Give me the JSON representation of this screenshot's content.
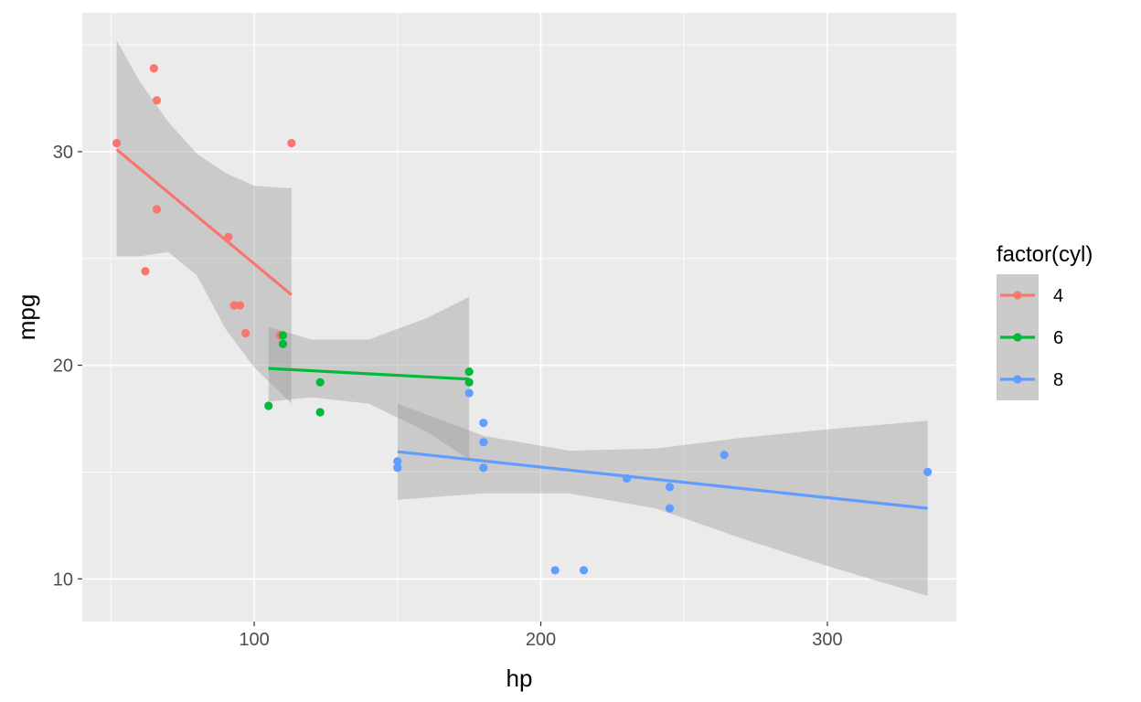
{
  "chart_data": {
    "type": "scatter",
    "xlabel": "hp",
    "ylabel": "mpg",
    "xlim": [
      40,
      345
    ],
    "ylim": [
      8,
      36.5
    ],
    "x_ticks": [
      100,
      200,
      300
    ],
    "y_ticks": [
      10,
      20,
      30
    ],
    "x_tick_labels": [
      "100",
      "200",
      "300"
    ],
    "y_tick_labels": [
      "10",
      "20",
      "30"
    ],
    "grid": true,
    "legend": {
      "title": "factor(cyl)",
      "placement": "right",
      "entries": [
        "4",
        "6",
        "8"
      ]
    },
    "series": [
      {
        "name": "4",
        "color": "#F8766D",
        "points": [
          {
            "x": 52,
            "y": 30.4
          },
          {
            "x": 62,
            "y": 24.4
          },
          {
            "x": 65,
            "y": 33.9
          },
          {
            "x": 66,
            "y": 32.4
          },
          {
            "x": 66,
            "y": 27.3
          },
          {
            "x": 91,
            "y": 26.0
          },
          {
            "x": 93,
            "y": 22.8
          },
          {
            "x": 95,
            "y": 22.8
          },
          {
            "x": 97,
            "y": 21.5
          },
          {
            "x": 109,
            "y": 21.4
          },
          {
            "x": 113,
            "y": 30.4
          }
        ],
        "fit": {
          "x": [
            52,
            113
          ],
          "y": [
            30.1,
            23.3
          ]
        },
        "ribbon": {
          "x": [
            52,
            60,
            70,
            80,
            90,
            100,
            110,
            113
          ],
          "upper": [
            35.2,
            33.3,
            31.4,
            29.9,
            29.0,
            28.4,
            28.3,
            28.3
          ],
          "lower": [
            25.1,
            25.1,
            25.3,
            24.2,
            21.7,
            19.9,
            18.6,
            18.2
          ]
        }
      },
      {
        "name": "6",
        "color": "#00BA38",
        "points": [
          {
            "x": 105,
            "y": 18.1
          },
          {
            "x": 110,
            "y": 21.0
          },
          {
            "x": 110,
            "y": 21.4
          },
          {
            "x": 123,
            "y": 19.2
          },
          {
            "x": 123,
            "y": 17.8
          },
          {
            "x": 175,
            "y": 19.7
          },
          {
            "x": 175,
            "y": 19.2
          }
        ],
        "fit": {
          "x": [
            105,
            175
          ],
          "y": [
            19.85,
            19.35
          ]
        },
        "ribbon": {
          "x": [
            105,
            120,
            140,
            160,
            175
          ],
          "upper": [
            21.8,
            21.2,
            21.2,
            22.2,
            23.2
          ],
          "lower": [
            18.3,
            18.5,
            18.2,
            16.9,
            15.6
          ]
        }
      },
      {
        "name": "8",
        "color": "#619CFF",
        "points": [
          {
            "x": 150,
            "y": 15.5
          },
          {
            "x": 150,
            "y": 15.2
          },
          {
            "x": 175,
            "y": 18.7
          },
          {
            "x": 180,
            "y": 17.3
          },
          {
            "x": 180,
            "y": 16.4
          },
          {
            "x": 180,
            "y": 15.2
          },
          {
            "x": 205,
            "y": 10.4
          },
          {
            "x": 215,
            "y": 10.4
          },
          {
            "x": 230,
            "y": 14.7
          },
          {
            "x": 245,
            "y": 14.3
          },
          {
            "x": 245,
            "y": 13.3
          },
          {
            "x": 264,
            "y": 15.8
          },
          {
            "x": 335,
            "y": 15.0
          }
        ],
        "fit": {
          "x": [
            150,
            335
          ],
          "y": [
            15.95,
            13.3
          ]
        },
        "ribbon": {
          "x": [
            150,
            180,
            210,
            240,
            270,
            300,
            335
          ],
          "upper": [
            18.2,
            16.7,
            16.0,
            16.1,
            16.6,
            17.0,
            17.4
          ],
          "lower": [
            13.7,
            14.0,
            14.0,
            13.3,
            11.9,
            10.6,
            9.2
          ]
        }
      }
    ]
  }
}
